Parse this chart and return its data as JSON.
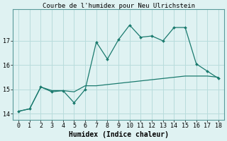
{
  "title": "Courbe de l'humidex pour Neu Ulrichstein",
  "xlabel": "Humidex (Indice chaleur)",
  "background_color": "#dff2f2",
  "grid_color": "#b8dcdc",
  "line_color": "#1a7a6e",
  "x_data": [
    0,
    1,
    2,
    3,
    4,
    5,
    6,
    7,
    8,
    9,
    10,
    11,
    12,
    13,
    14,
    15,
    16,
    17,
    18
  ],
  "y_line1": [
    14.1,
    14.2,
    15.1,
    14.9,
    14.95,
    14.45,
    15.0,
    16.95,
    16.25,
    17.05,
    17.65,
    17.15,
    17.2,
    17.0,
    17.55,
    17.55,
    16.05,
    15.75,
    15.45
  ],
  "y_line2": [
    14.1,
    14.2,
    15.1,
    14.95,
    14.95,
    14.9,
    15.15,
    15.15,
    15.2,
    15.25,
    15.3,
    15.35,
    15.4,
    15.45,
    15.5,
    15.55,
    15.55,
    15.55,
    15.5
  ],
  "ylim": [
    13.75,
    18.3
  ],
  "xlim": [
    -0.5,
    18.5
  ],
  "yticks": [
    14,
    15,
    16,
    17
  ],
  "xticks": [
    0,
    1,
    2,
    3,
    4,
    5,
    6,
    7,
    8,
    9,
    10,
    11,
    12,
    13,
    14,
    15,
    16,
    17,
    18
  ],
  "title_fontsize": 6.5,
  "label_fontsize": 7,
  "tick_fontsize": 6
}
